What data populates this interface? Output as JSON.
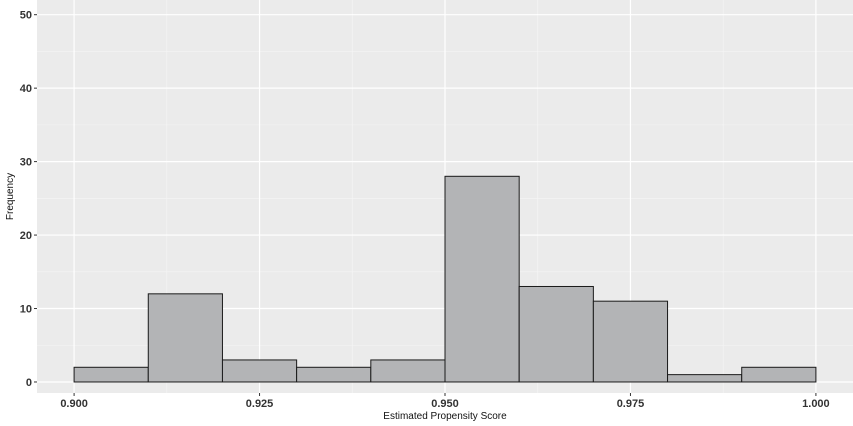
{
  "chart_data": {
    "type": "bar",
    "subtype": "histogram",
    "bins": [
      {
        "x0": 0.9,
        "x1": 0.91,
        "count": 2
      },
      {
        "x0": 0.91,
        "x1": 0.92,
        "count": 12
      },
      {
        "x0": 0.92,
        "x1": 0.93,
        "count": 3
      },
      {
        "x0": 0.93,
        "x1": 0.94,
        "count": 2
      },
      {
        "x0": 0.94,
        "x1": 0.95,
        "count": 3
      },
      {
        "x0": 0.95,
        "x1": 0.96,
        "count": 28
      },
      {
        "x0": 0.96,
        "x1": 0.97,
        "count": 13
      },
      {
        "x0": 0.97,
        "x1": 0.98,
        "count": 11
      },
      {
        "x0": 0.98,
        "x1": 0.99,
        "count": 1
      },
      {
        "x0": 0.99,
        "x1": 1.0,
        "count": 2
      }
    ],
    "xlabel": "Estimated Propensity Score",
    "ylabel": "Frequency",
    "xlim": [
      0.895,
      1.005
    ],
    "ylim": [
      -1.5,
      52
    ],
    "xticks": [
      0.9,
      0.925,
      0.95,
      0.975,
      1.0
    ],
    "xtick_labels": [
      "0.900",
      "0.925",
      "0.950",
      "0.975",
      "1.000"
    ],
    "yticks": [
      0,
      10,
      20,
      30,
      40,
      50
    ],
    "ytick_labels": [
      "0",
      "10",
      "20",
      "30",
      "40",
      "50"
    ],
    "grid": true,
    "legend": "none",
    "colors": {
      "panel_background": "#ebebeb",
      "grid_major": "#ffffff",
      "grid_minor": "#f5f5f5",
      "bar_fill": "#b3b4b6",
      "bar_outline": "#1a1a1a"
    }
  }
}
